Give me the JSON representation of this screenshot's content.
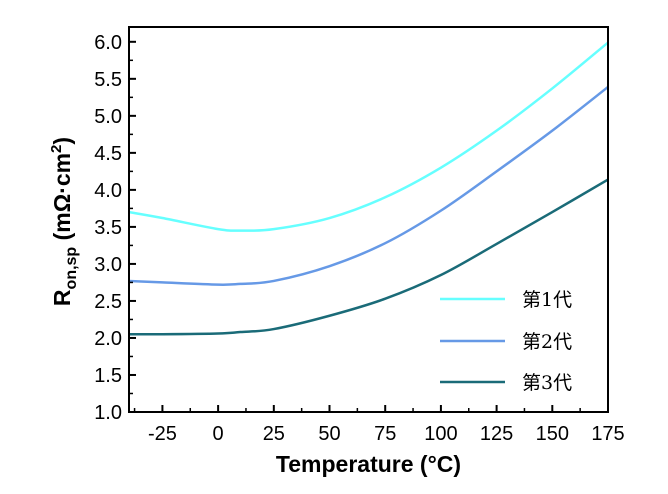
{
  "chart_data": {
    "type": "line",
    "title": "",
    "xlabel": "Temperature (°C)",
    "ylabel": {
      "main": "R",
      "subscript": "on,sp",
      "unit_prefix": " (mΩ·cm",
      "unit_superscript": "2",
      "unit_suffix": ")"
    },
    "xlim": [
      -40,
      175
    ],
    "ylim": [
      1.0,
      6.2
    ],
    "x_ticks": [
      -25,
      0,
      25,
      50,
      75,
      100,
      125,
      150,
      175
    ],
    "x_tick_labels": [
      "-25",
      "0",
      "25",
      "50",
      "75",
      "100",
      "125",
      "150",
      "175"
    ],
    "y_ticks": [
      1.0,
      1.5,
      2.0,
      2.5,
      3.0,
      3.5,
      4.0,
      4.5,
      5.0,
      5.5,
      6.0
    ],
    "y_tick_labels": [
      "1.0",
      "1.5",
      "2.0",
      "2.5",
      "3.0",
      "3.5",
      "4.0",
      "4.5",
      "5.0",
      "5.5",
      "6.0"
    ],
    "grid": false,
    "legend_position": "bottom-right",
    "x": [
      -40,
      -25,
      0,
      10,
      25,
      50,
      75,
      100,
      125,
      150,
      175
    ],
    "series": [
      {
        "name": "第1代",
        "color": "#66FFFF",
        "values": [
          3.7,
          3.62,
          3.47,
          3.45,
          3.47,
          3.62,
          3.9,
          4.3,
          4.8,
          5.37,
          5.99
        ]
      },
      {
        "name": "第2代",
        "color": "#6699E6",
        "values": [
          2.77,
          2.75,
          2.72,
          2.73,
          2.77,
          2.97,
          3.28,
          3.72,
          4.25,
          4.8,
          5.39
        ]
      },
      {
        "name": "第3代",
        "color": "#1A6B78",
        "values": [
          2.05,
          2.05,
          2.06,
          2.08,
          2.12,
          2.3,
          2.53,
          2.85,
          3.27,
          3.7,
          4.14
        ]
      }
    ]
  }
}
